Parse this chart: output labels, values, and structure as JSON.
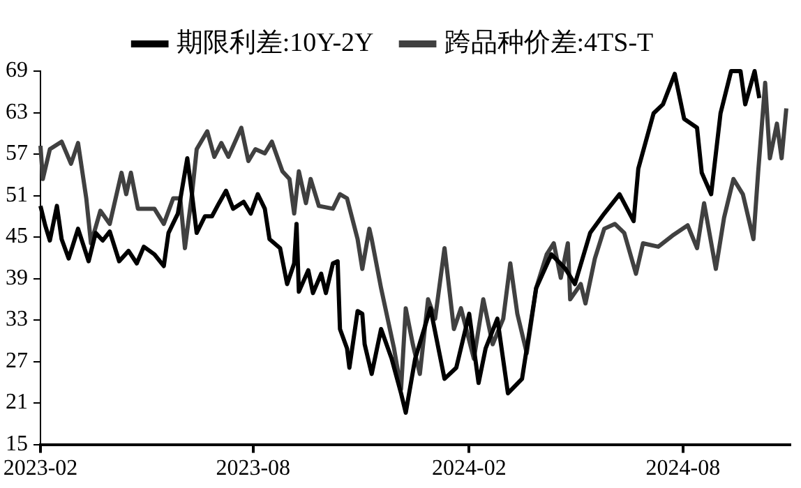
{
  "chart_data": {
    "type": "line",
    "legend": "top",
    "grid": false,
    "marker": "none",
    "line_style": "solid",
    "xlim": [
      "2023-02-01",
      "2024-10-31"
    ],
    "xticks": [
      "2023-02",
      "2023-08",
      "2024-02",
      "2024-08"
    ],
    "ylim": [
      15,
      69
    ],
    "yticks": [
      15,
      21,
      27,
      33,
      39,
      45,
      51,
      57,
      63,
      69
    ],
    "series": [
      {
        "name": "期限利差:10Y-2Y",
        "color": "#000000",
        "x": [
          "2023-02-01",
          "2023-02-05",
          "2023-02-09",
          "2023-02-15",
          "2023-02-19",
          "2023-02-25",
          "2023-03-05",
          "2023-03-14",
          "2023-03-20",
          "2023-03-26",
          "2023-04-01",
          "2023-04-09",
          "2023-04-17",
          "2023-04-24",
          "2023-04-30",
          "2023-05-09",
          "2023-05-17",
          "2023-05-21",
          "2023-05-29",
          "2023-06-06",
          "2023-06-10",
          "2023-06-14",
          "2023-06-21",
          "2023-06-27",
          "2023-07-03",
          "2023-07-09",
          "2023-07-15",
          "2023-07-24",
          "2023-07-30",
          "2023-08-05",
          "2023-08-11",
          "2023-08-15",
          "2023-08-24",
          "2023-08-30",
          "2023-09-05",
          "2023-09-07",
          "2023-09-09",
          "2023-09-17",
          "2023-09-21",
          "2023-09-28",
          "2023-10-02",
          "2023-10-08",
          "2023-10-12",
          "2023-10-14",
          "2023-10-20",
          "2023-10-22",
          "2023-10-29",
          "2023-11-02",
          "2023-11-04",
          "2023-11-10",
          "2023-11-18",
          "2023-11-27",
          "2023-12-05",
          "2023-12-09",
          "2023-12-17",
          "2023-12-30",
          "2024-01-11",
          "2024-01-21",
          "2024-02-01",
          "2024-02-09",
          "2024-02-15",
          "2024-02-25",
          "2024-03-05",
          "2024-03-17",
          "2024-03-29",
          "2024-04-11",
          "2024-04-23",
          "2024-05-01",
          "2024-05-14",
          "2024-05-26",
          "2024-06-08",
          "2024-06-20",
          "2024-06-24",
          "2024-07-07",
          "2024-07-15",
          "2024-07-25",
          "2024-08-02",
          "2024-08-13",
          "2024-08-17",
          "2024-08-25",
          "2024-09-02",
          "2024-09-11",
          "2024-09-19",
          "2024-09-23",
          "2024-10-01",
          "2024-10-05"
        ],
        "values": [
          49.5,
          46.7,
          44.5,
          49.5,
          44.7,
          41.9,
          46.2,
          41.5,
          45.6,
          44.5,
          45.8,
          41.5,
          43,
          41.2,
          43.6,
          42.5,
          40.8,
          45.6,
          48.4,
          56.4,
          51.2,
          45.6,
          48,
          48,
          49.9,
          51.7,
          49.1,
          50.1,
          48.4,
          51.2,
          49.1,
          44.7,
          43.4,
          38.2,
          41.2,
          46.9,
          37.1,
          40.2,
          36.9,
          39.7,
          36.9,
          41.2,
          41.5,
          31.7,
          28.9,
          26.1,
          34.3,
          33.9,
          29.5,
          25.2,
          31.7,
          27.4,
          22.4,
          19.6,
          27.4,
          34.7,
          24.5,
          26.1,
          33.9,
          23.9,
          28.9,
          33.2,
          22.4,
          24.5,
          37.6,
          42.5,
          40.4,
          38.2,
          45.6,
          48.4,
          51.2,
          47.3,
          54.9,
          62.9,
          64.2,
          68.6,
          62.1,
          60.8,
          54.3,
          51.2,
          62.9,
          69,
          69,
          64.2,
          69,
          65.1
        ]
      },
      {
        "name": "跨品种价差:4TS-T",
        "color": "#404040",
        "x": [
          "2023-02-01",
          "2023-02-03",
          "2023-02-09",
          "2023-02-19",
          "2023-02-27",
          "2023-03-05",
          "2023-03-12",
          "2023-03-16",
          "2023-03-24",
          "2023-04-01",
          "2023-04-11",
          "2023-04-15",
          "2023-04-19",
          "2023-04-25",
          "2023-05-09",
          "2023-05-17",
          "2023-05-25",
          "2023-05-31",
          "2023-06-04",
          "2023-06-10",
          "2023-06-14",
          "2023-06-23",
          "2023-06-29",
          "2023-07-05",
          "2023-07-11",
          "2023-07-22",
          "2023-07-28",
          "2023-08-03",
          "2023-08-11",
          "2023-08-17",
          "2023-08-26",
          "2023-09-01",
          "2023-09-05",
          "2023-09-09",
          "2023-09-15",
          "2023-09-19",
          "2023-09-26",
          "2023-10-08",
          "2023-10-14",
          "2023-10-20",
          "2023-10-29",
          "2023-11-02",
          "2023-11-08",
          "2023-11-10",
          "2023-11-18",
          "2023-11-29",
          "2023-12-05",
          "2023-12-09",
          "2023-12-15",
          "2023-12-21",
          "2023-12-28",
          "2024-01-03",
          "2024-01-11",
          "2024-01-19",
          "2024-01-25",
          "2024-02-05",
          "2024-02-13",
          "2024-02-21",
          "2024-03-01",
          "2024-03-07",
          "2024-03-13",
          "2024-03-21",
          "2024-03-29",
          "2024-04-07",
          "2024-04-13",
          "2024-04-19",
          "2024-04-25",
          "2024-04-27",
          "2024-05-06",
          "2024-05-10",
          "2024-05-18",
          "2024-05-26",
          "2024-06-04",
          "2024-06-12",
          "2024-06-22",
          "2024-06-28",
          "2024-07-11",
          "2024-07-23",
          "2024-08-05",
          "2024-08-13",
          "2024-08-19",
          "2024-08-29",
          "2024-09-05",
          "2024-09-13",
          "2024-09-21",
          "2024-09-30",
          "2024-10-04",
          "2024-10-10",
          "2024-10-14",
          "2024-10-20",
          "2024-10-24",
          "2024-10-28"
        ],
        "values": [
          58.2,
          53.4,
          57.7,
          58.8,
          55.6,
          58.6,
          50.6,
          44.1,
          48.8,
          46.9,
          54.3,
          51.2,
          54.3,
          49.1,
          49.1,
          46.9,
          50.6,
          50.6,
          43.4,
          51.2,
          57.7,
          60.3,
          56.6,
          58.6,
          56.6,
          60.8,
          56,
          57.7,
          57.1,
          58.8,
          54.5,
          53.4,
          48.4,
          54.5,
          49.9,
          53.4,
          49.5,
          49.1,
          51.2,
          50.6,
          44.7,
          40.4,
          46.2,
          44.7,
          37.6,
          28.9,
          23,
          34.7,
          29.5,
          25.2,
          36,
          33.2,
          43.4,
          31.7,
          34.7,
          27.4,
          36,
          29.5,
          33.2,
          41.2,
          33.9,
          28.2,
          37.6,
          42.5,
          44.1,
          39.1,
          44.1,
          36,
          38.2,
          35.4,
          41.9,
          46.2,
          46.9,
          45.6,
          39.7,
          44.1,
          43.6,
          45.2,
          46.7,
          43.4,
          49.9,
          40.4,
          47.8,
          53.4,
          51.2,
          44.7,
          54.3,
          67.3,
          56.4,
          61.4,
          56.4,
          63.6
        ]
      }
    ]
  }
}
